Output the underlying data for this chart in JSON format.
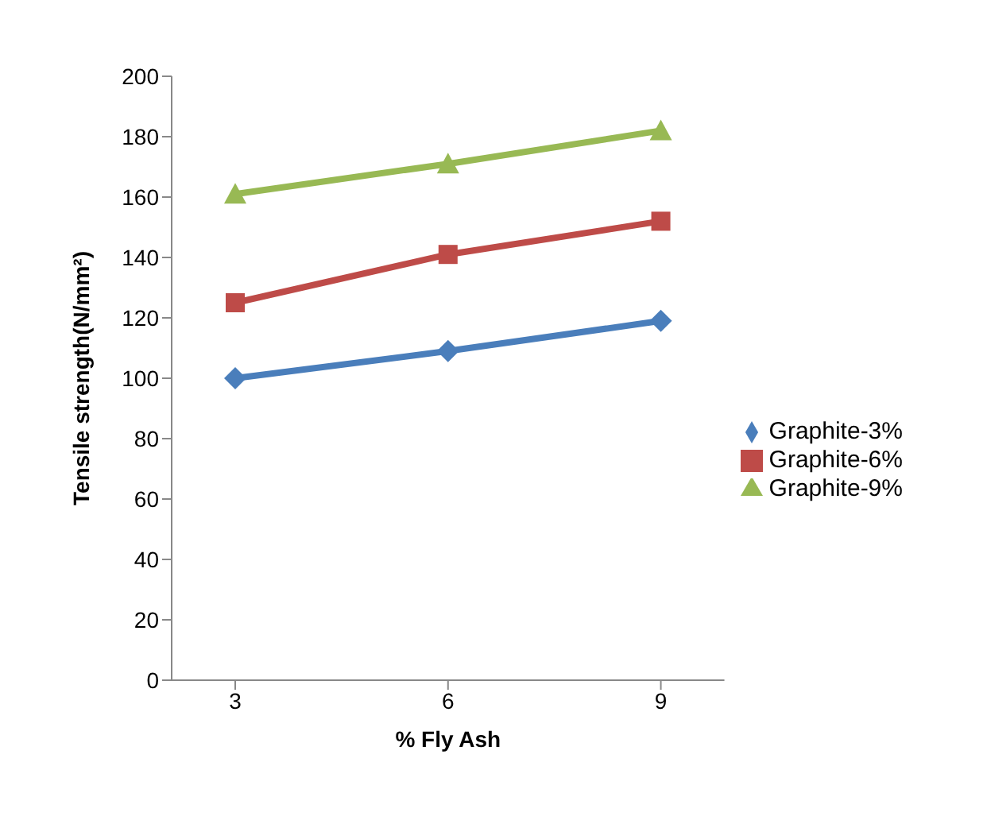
{
  "chart_data": {
    "type": "line",
    "xlabel": "% Fly Ash",
    "ylabel": "Tensile strength(N/mm²)",
    "categories": [
      "3",
      "6",
      "9"
    ],
    "series": [
      {
        "name": "Graphite-3%",
        "color": "#4a7ebb",
        "marker": "diamond",
        "values": [
          100,
          109,
          119
        ]
      },
      {
        "name": "Graphite-6%",
        "color": "#be4b48",
        "marker": "square",
        "values": [
          125,
          141,
          152
        ]
      },
      {
        "name": "Graphite-9%",
        "color": "#98b954",
        "marker": "triangle",
        "values": [
          161,
          171,
          182
        ]
      }
    ],
    "ylim": [
      0,
      200
    ],
    "yticks": [
      0,
      20,
      40,
      60,
      80,
      100,
      120,
      140,
      160,
      180,
      200
    ],
    "grid": false,
    "legend": "right",
    "line_style": "solid"
  }
}
